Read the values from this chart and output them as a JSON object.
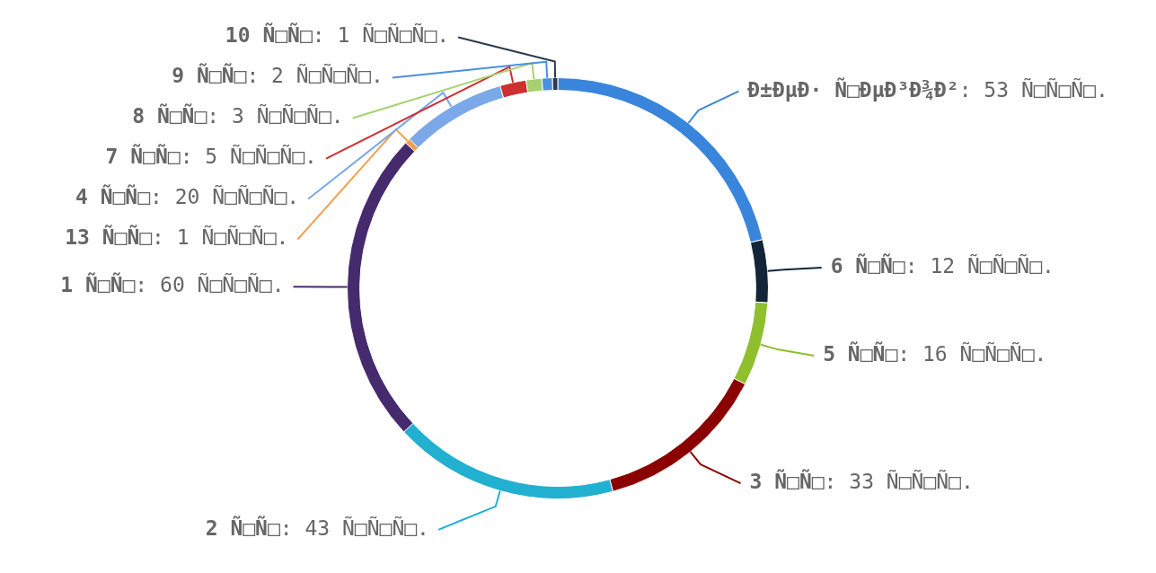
{
  "chart_data": {
    "type": "donut",
    "categories": [
      "Ð±ÐµÐ· Ñ□ÐµÐ³Ð¾Ð²",
      "6 Ñ□Ñ□",
      "5 Ñ□Ñ□",
      "3 Ñ□Ñ□",
      "2 Ñ□Ñ□",
      "1 Ñ□Ñ□",
      "13 Ñ□Ñ□",
      "4 Ñ□Ñ□",
      "7 Ñ□Ñ□",
      "8 Ñ□Ñ□",
      "9 Ñ□Ñ□",
      "10 Ñ□Ñ□"
    ],
    "values": [
      53,
      12,
      16,
      33,
      43,
      60,
      1,
      20,
      5,
      3,
      2,
      1
    ],
    "value_labels": [
      ": 53 Ñ□Ñ□Ñ□.",
      ": 12 Ñ□Ñ□Ñ□.",
      ": 16 Ñ□Ñ□Ñ□.",
      ": 33 Ñ□Ñ□Ñ□.",
      ": 43 Ñ□Ñ□Ñ□.",
      ": 60 Ñ□Ñ□Ñ□.",
      ": 1 Ñ□Ñ□Ñ□.",
      ": 20 Ñ□Ñ□Ñ□.",
      ": 5 Ñ□Ñ□Ñ□.",
      ": 3 Ñ□Ñ□Ñ□.",
      ": 2 Ñ□Ñ□Ñ□.",
      ": 1 Ñ□Ñ□Ñ□."
    ],
    "colors": [
      "#3a85dc",
      "#132639",
      "#8fbf2f",
      "#8b0000",
      "#22b0d0",
      "#452a6e",
      "#f0a050",
      "#7aa8e8",
      "#cc3030",
      "#a8d070",
      "#4a90e0",
      "#2b3a4e"
    ],
    "legend": false
  }
}
